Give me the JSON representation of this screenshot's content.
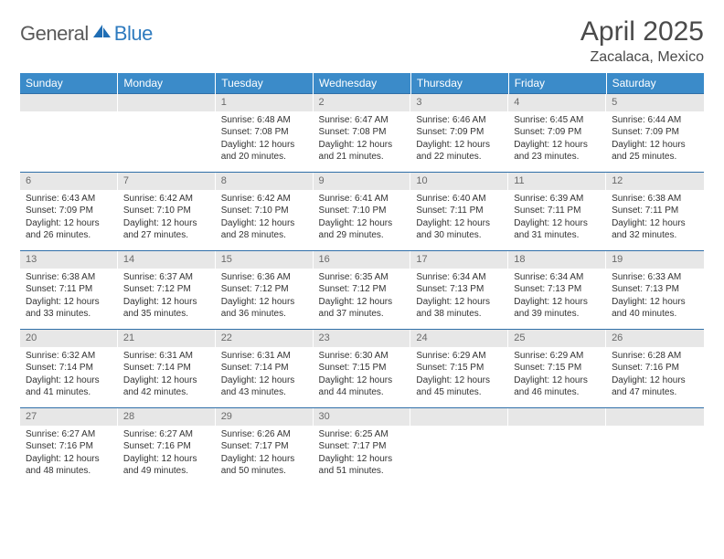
{
  "logo": {
    "text1": "General",
    "text2": "Blue"
  },
  "title": "April 2025",
  "location": "Zacalaca, Mexico",
  "colors": {
    "header_bg": "#3b8bc9",
    "header_text": "#ffffff",
    "daynum_bg": "#e7e7e7",
    "daynum_text": "#6a6a6a",
    "row_border": "#2f6fa8",
    "body_text": "#333333",
    "logo_gray": "#5a5a5a",
    "logo_blue": "#2f7bbf"
  },
  "headers": [
    "Sunday",
    "Monday",
    "Tuesday",
    "Wednesday",
    "Thursday",
    "Friday",
    "Saturday"
  ],
  "weeks": [
    [
      {
        "n": "",
        "sr": "",
        "ss": "",
        "dl": ""
      },
      {
        "n": "",
        "sr": "",
        "ss": "",
        "dl": ""
      },
      {
        "n": "1",
        "sr": "Sunrise: 6:48 AM",
        "ss": "Sunset: 7:08 PM",
        "dl": "Daylight: 12 hours and 20 minutes."
      },
      {
        "n": "2",
        "sr": "Sunrise: 6:47 AM",
        "ss": "Sunset: 7:08 PM",
        "dl": "Daylight: 12 hours and 21 minutes."
      },
      {
        "n": "3",
        "sr": "Sunrise: 6:46 AM",
        "ss": "Sunset: 7:09 PM",
        "dl": "Daylight: 12 hours and 22 minutes."
      },
      {
        "n": "4",
        "sr": "Sunrise: 6:45 AM",
        "ss": "Sunset: 7:09 PM",
        "dl": "Daylight: 12 hours and 23 minutes."
      },
      {
        "n": "5",
        "sr": "Sunrise: 6:44 AM",
        "ss": "Sunset: 7:09 PM",
        "dl": "Daylight: 12 hours and 25 minutes."
      }
    ],
    [
      {
        "n": "6",
        "sr": "Sunrise: 6:43 AM",
        "ss": "Sunset: 7:09 PM",
        "dl": "Daylight: 12 hours and 26 minutes."
      },
      {
        "n": "7",
        "sr": "Sunrise: 6:42 AM",
        "ss": "Sunset: 7:10 PM",
        "dl": "Daylight: 12 hours and 27 minutes."
      },
      {
        "n": "8",
        "sr": "Sunrise: 6:42 AM",
        "ss": "Sunset: 7:10 PM",
        "dl": "Daylight: 12 hours and 28 minutes."
      },
      {
        "n": "9",
        "sr": "Sunrise: 6:41 AM",
        "ss": "Sunset: 7:10 PM",
        "dl": "Daylight: 12 hours and 29 minutes."
      },
      {
        "n": "10",
        "sr": "Sunrise: 6:40 AM",
        "ss": "Sunset: 7:11 PM",
        "dl": "Daylight: 12 hours and 30 minutes."
      },
      {
        "n": "11",
        "sr": "Sunrise: 6:39 AM",
        "ss": "Sunset: 7:11 PM",
        "dl": "Daylight: 12 hours and 31 minutes."
      },
      {
        "n": "12",
        "sr": "Sunrise: 6:38 AM",
        "ss": "Sunset: 7:11 PM",
        "dl": "Daylight: 12 hours and 32 minutes."
      }
    ],
    [
      {
        "n": "13",
        "sr": "Sunrise: 6:38 AM",
        "ss": "Sunset: 7:11 PM",
        "dl": "Daylight: 12 hours and 33 minutes."
      },
      {
        "n": "14",
        "sr": "Sunrise: 6:37 AM",
        "ss": "Sunset: 7:12 PM",
        "dl": "Daylight: 12 hours and 35 minutes."
      },
      {
        "n": "15",
        "sr": "Sunrise: 6:36 AM",
        "ss": "Sunset: 7:12 PM",
        "dl": "Daylight: 12 hours and 36 minutes."
      },
      {
        "n": "16",
        "sr": "Sunrise: 6:35 AM",
        "ss": "Sunset: 7:12 PM",
        "dl": "Daylight: 12 hours and 37 minutes."
      },
      {
        "n": "17",
        "sr": "Sunrise: 6:34 AM",
        "ss": "Sunset: 7:13 PM",
        "dl": "Daylight: 12 hours and 38 minutes."
      },
      {
        "n": "18",
        "sr": "Sunrise: 6:34 AM",
        "ss": "Sunset: 7:13 PM",
        "dl": "Daylight: 12 hours and 39 minutes."
      },
      {
        "n": "19",
        "sr": "Sunrise: 6:33 AM",
        "ss": "Sunset: 7:13 PM",
        "dl": "Daylight: 12 hours and 40 minutes."
      }
    ],
    [
      {
        "n": "20",
        "sr": "Sunrise: 6:32 AM",
        "ss": "Sunset: 7:14 PM",
        "dl": "Daylight: 12 hours and 41 minutes."
      },
      {
        "n": "21",
        "sr": "Sunrise: 6:31 AM",
        "ss": "Sunset: 7:14 PM",
        "dl": "Daylight: 12 hours and 42 minutes."
      },
      {
        "n": "22",
        "sr": "Sunrise: 6:31 AM",
        "ss": "Sunset: 7:14 PM",
        "dl": "Daylight: 12 hours and 43 minutes."
      },
      {
        "n": "23",
        "sr": "Sunrise: 6:30 AM",
        "ss": "Sunset: 7:15 PM",
        "dl": "Daylight: 12 hours and 44 minutes."
      },
      {
        "n": "24",
        "sr": "Sunrise: 6:29 AM",
        "ss": "Sunset: 7:15 PM",
        "dl": "Daylight: 12 hours and 45 minutes."
      },
      {
        "n": "25",
        "sr": "Sunrise: 6:29 AM",
        "ss": "Sunset: 7:15 PM",
        "dl": "Daylight: 12 hours and 46 minutes."
      },
      {
        "n": "26",
        "sr": "Sunrise: 6:28 AM",
        "ss": "Sunset: 7:16 PM",
        "dl": "Daylight: 12 hours and 47 minutes."
      }
    ],
    [
      {
        "n": "27",
        "sr": "Sunrise: 6:27 AM",
        "ss": "Sunset: 7:16 PM",
        "dl": "Daylight: 12 hours and 48 minutes."
      },
      {
        "n": "28",
        "sr": "Sunrise: 6:27 AM",
        "ss": "Sunset: 7:16 PM",
        "dl": "Daylight: 12 hours and 49 minutes."
      },
      {
        "n": "29",
        "sr": "Sunrise: 6:26 AM",
        "ss": "Sunset: 7:17 PM",
        "dl": "Daylight: 12 hours and 50 minutes."
      },
      {
        "n": "30",
        "sr": "Sunrise: 6:25 AM",
        "ss": "Sunset: 7:17 PM",
        "dl": "Daylight: 12 hours and 51 minutes."
      },
      {
        "n": "",
        "sr": "",
        "ss": "",
        "dl": ""
      },
      {
        "n": "",
        "sr": "",
        "ss": "",
        "dl": ""
      },
      {
        "n": "",
        "sr": "",
        "ss": "",
        "dl": ""
      }
    ]
  ]
}
